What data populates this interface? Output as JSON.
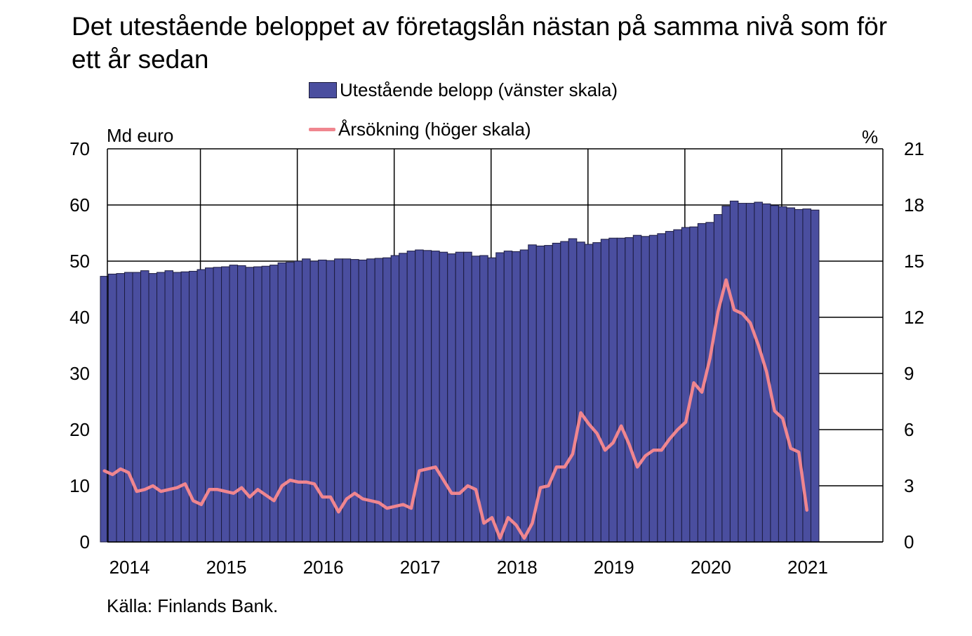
{
  "chart_data": {
    "type": "bar",
    "title": "Det utestående beloppet av företagslån nästan på samma nivå som för ett år sedan",
    "left_axis": {
      "unit": "Md euro",
      "ylim": [
        0,
        70
      ],
      "ticks": [
        "0",
        "10",
        "20",
        "30",
        "40",
        "50",
        "60",
        "70"
      ]
    },
    "right_axis": {
      "unit": "%",
      "ylim": [
        0,
        21
      ],
      "ticks": [
        "0",
        "3",
        "6",
        "9",
        "12",
        "15",
        "18",
        "21"
      ]
    },
    "x_axis": {
      "ticks": [
        "2014",
        "2015",
        "2016",
        "2017",
        "2018",
        "2019",
        "2020",
        "2021"
      ]
    },
    "grid": true,
    "legend": {
      "placement": "top"
    },
    "source": "Källa: Finlands Bank.",
    "series": [
      {
        "name": "Utestående belopp (vänster skala)",
        "type": "bar",
        "axis": "left",
        "color": "#4a4e9f",
        "start_month": "2013-12",
        "values": [
          47.3,
          47.7,
          47.8,
          48.0,
          48.0,
          48.3,
          47.8,
          48.0,
          48.3,
          48.0,
          48.1,
          48.2,
          48.5,
          48.8,
          48.9,
          49.0,
          49.3,
          49.2,
          48.9,
          49.0,
          49.1,
          49.3,
          49.7,
          49.8,
          50.0,
          50.4,
          50.0,
          50.2,
          50.1,
          50.4,
          50.4,
          50.3,
          50.2,
          50.4,
          50.5,
          50.6,
          51.0,
          51.4,
          51.8,
          52.0,
          51.9,
          51.8,
          51.6,
          51.3,
          51.6,
          51.6,
          50.9,
          51.0,
          50.6,
          51.5,
          51.8,
          51.7,
          52.0,
          52.9,
          52.7,
          52.8,
          53.2,
          53.5,
          54.0,
          53.4,
          53.0,
          53.3,
          53.9,
          54.1,
          54.1,
          54.2,
          54.6,
          54.4,
          54.6,
          54.9,
          55.3,
          55.6,
          56.0,
          56.1,
          56.7,
          56.9,
          58.3,
          59.8,
          60.7,
          60.3,
          60.3,
          60.5,
          60.2,
          59.9,
          59.7,
          59.5,
          59.2,
          59.3,
          59.1
        ]
      },
      {
        "name": "Årsökning (höger skala)",
        "type": "line",
        "axis": "right",
        "color": "#f0868f",
        "start_month": "2013-12",
        "values": [
          3.8,
          3.6,
          3.9,
          3.7,
          2.7,
          2.8,
          3.0,
          2.7,
          2.8,
          2.9,
          3.1,
          2.2,
          2.0,
          2.8,
          2.8,
          2.7,
          2.6,
          2.9,
          2.4,
          2.8,
          2.5,
          2.2,
          3.0,
          3.3,
          3.2,
          3.2,
          3.1,
          2.4,
          2.4,
          1.6,
          2.3,
          2.6,
          2.3,
          2.2,
          2.1,
          1.8,
          1.9,
          2.0,
          1.8,
          3.8,
          3.9,
          4.0,
          3.3,
          2.6,
          2.6,
          3.0,
          2.8,
          1.0,
          1.3,
          0.2,
          1.3,
          0.9,
          0.2,
          1.0,
          2.9,
          3.0,
          4.0,
          4.0,
          4.7,
          6.9,
          6.3,
          5.8,
          4.9,
          5.3,
          6.2,
          5.2,
          4.0,
          4.6,
          4.9,
          4.9,
          5.5,
          6.0,
          6.4,
          8.5,
          8.0,
          9.8,
          12.3,
          14.0,
          12.4,
          12.2,
          11.7,
          10.5,
          9.1,
          7.0,
          6.6,
          5.0,
          4.8,
          1.7
        ]
      }
    ]
  }
}
